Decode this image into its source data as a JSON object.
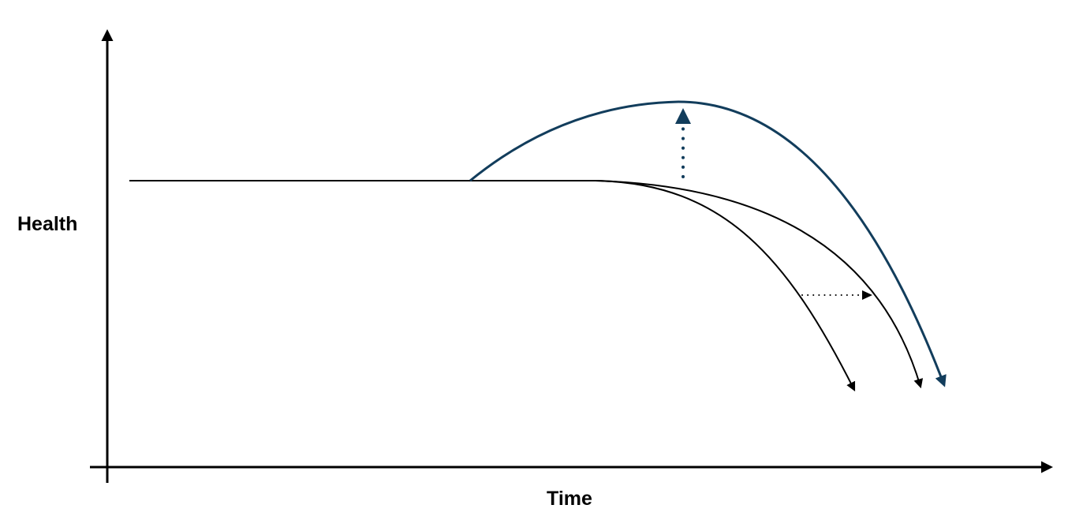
{
  "axes": {
    "y_label": "Health",
    "x_label": "Time"
  },
  "colors": {
    "axis": "#000000",
    "baseline_curves": "#000000",
    "improved_curve": "#123d5c"
  },
  "curves": [
    {
      "name": "baseline-decline-early",
      "style": "solid",
      "arrowhead": true
    },
    {
      "name": "baseline-decline-delayed",
      "style": "solid",
      "arrowhead": true
    },
    {
      "name": "improved-health-curve",
      "style": "solid",
      "arrowhead": true
    }
  ],
  "annotations": [
    {
      "name": "health-increase-arrow",
      "direction": "up",
      "style": "dotted"
    },
    {
      "name": "delay-shift-arrow",
      "direction": "right",
      "style": "dotted"
    }
  ]
}
